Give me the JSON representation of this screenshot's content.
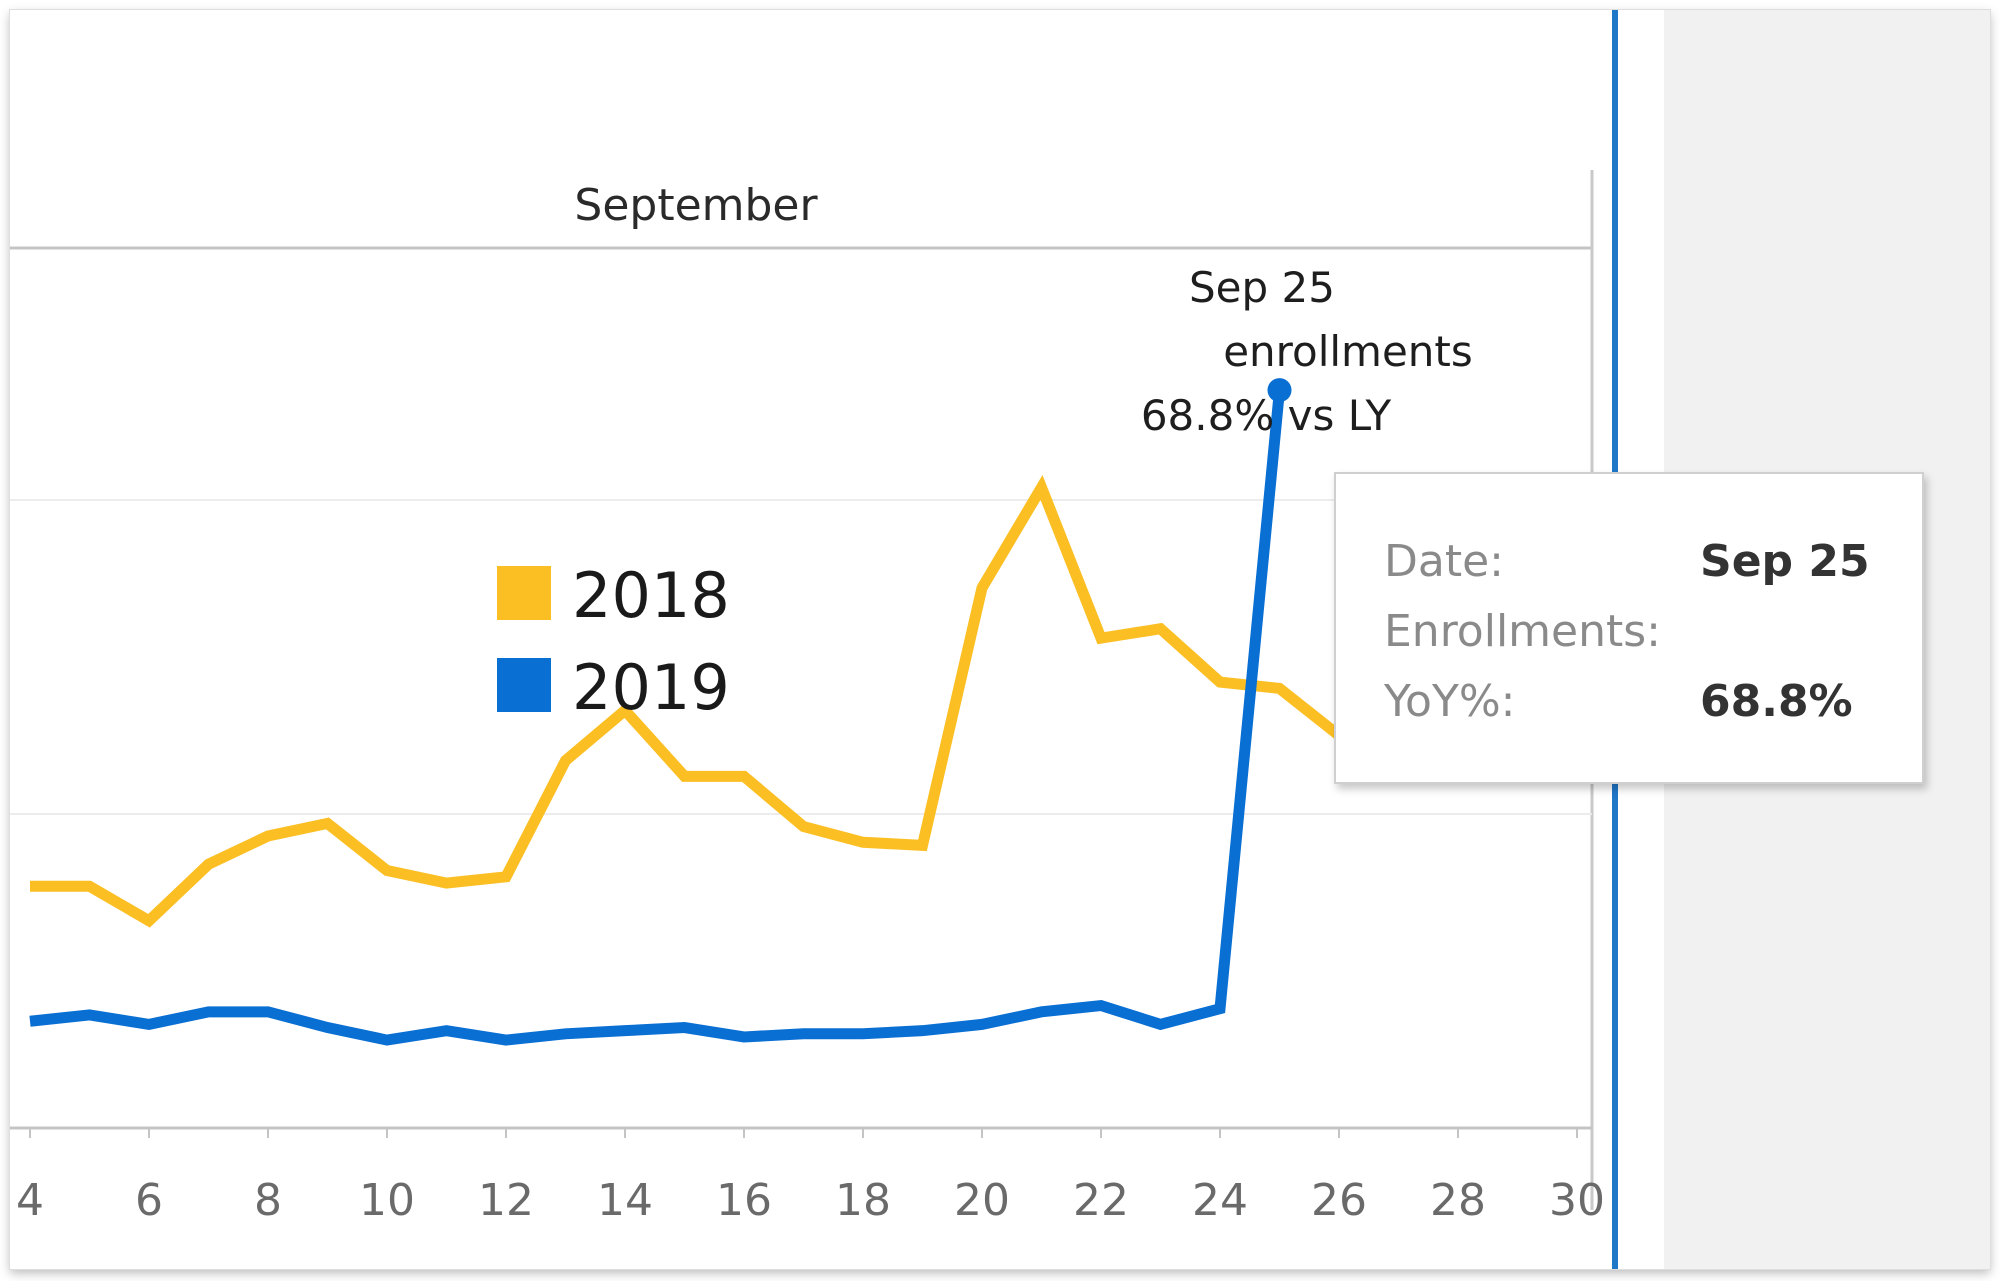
{
  "header": {
    "month": "September"
  },
  "legend": [
    {
      "label": "2018",
      "color": "#fbbf24"
    },
    {
      "label": "2019",
      "color": "#0a6fd3"
    }
  ],
  "annotation": {
    "line1": "Sep 25",
    "line2": "enrollments",
    "line3": "68.8% vs LY"
  },
  "tooltip": {
    "rows": [
      {
        "label": "Date:",
        "value": "Sep 25"
      },
      {
        "label": "Enrollments:",
        "value": ""
      },
      {
        "label": "YoY%:",
        "value": "68.8%"
      }
    ]
  },
  "chart_data": {
    "type": "line",
    "title": "",
    "xlabel": "",
    "ylabel": "",
    "x_ticks": [
      "4",
      "6",
      "8",
      "10",
      "12",
      "14",
      "16",
      "18",
      "20",
      "22",
      "24",
      "26",
      "28",
      "30"
    ],
    "xlim": [
      4,
      30
    ],
    "ylim": [
      0,
      4
    ],
    "grid": true,
    "legend_position": "center-left",
    "series": [
      {
        "name": "2018",
        "color": "#fbbf24",
        "x": [
          4,
          5,
          6,
          7,
          8,
          9,
          10,
          11,
          12,
          13,
          14,
          15,
          16,
          17,
          18,
          19,
          20,
          21,
          22,
          23,
          24,
          25,
          26
        ],
        "values": [
          0.77,
          0.77,
          0.66,
          0.84,
          0.93,
          0.97,
          0.82,
          0.78,
          0.8,
          1.17,
          1.33,
          1.12,
          1.12,
          0.96,
          0.91,
          0.9,
          1.72,
          2.04,
          1.56,
          1.59,
          1.42,
          1.4,
          1.25
        ]
      },
      {
        "name": "2019",
        "color": "#0a6fd3",
        "x": [
          4,
          5,
          6,
          7,
          8,
          9,
          10,
          11,
          12,
          13,
          14,
          15,
          16,
          17,
          18,
          19,
          20,
          21,
          22,
          23,
          24,
          25
        ],
        "values": [
          0.34,
          0.36,
          0.33,
          0.37,
          0.37,
          0.32,
          0.28,
          0.31,
          0.28,
          0.3,
          0.31,
          0.32,
          0.29,
          0.3,
          0.3,
          0.31,
          0.33,
          0.37,
          0.39,
          0.33,
          0.38,
          2.35
        ]
      }
    ],
    "highlight_point": {
      "series": "2019",
      "x": 25,
      "y": 2.35
    }
  }
}
